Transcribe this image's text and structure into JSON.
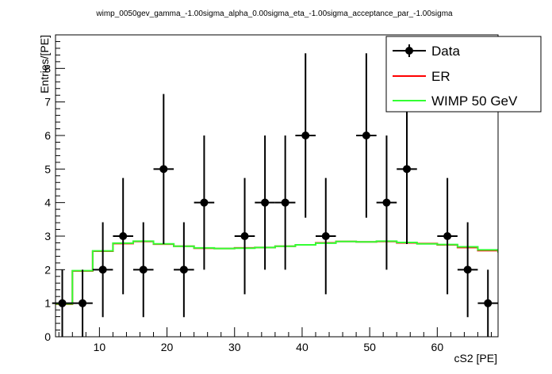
{
  "chart_data": {
    "type": "scatter",
    "title": "wimp_0050gev_gamma_-1.00sigma_alpha_0.00sigma_eta_-1.00sigma_acceptance_par_-1.00sigma",
    "xlabel": "cS2 [PE]",
    "ylabel": "Entries/[PE]",
    "xlim": [
      3.5,
      69
    ],
    "ylim": [
      0,
      9
    ],
    "x_ticks": [
      10,
      20,
      30,
      40,
      50,
      60
    ],
    "y_ticks": [
      0,
      1,
      2,
      3,
      4,
      5,
      6,
      7,
      8
    ],
    "legend_position": "top-right",
    "series": [
      {
        "name": "Data",
        "color": "#000000",
        "style": "markers-with-errorbars",
        "points": [
          {
            "x": 4.5,
            "y": 1
          },
          {
            "x": 7.5,
            "y": 1
          },
          {
            "x": 10.5,
            "y": 2
          },
          {
            "x": 13.5,
            "y": 3
          },
          {
            "x": 16.5,
            "y": 2
          },
          {
            "x": 19.5,
            "y": 5
          },
          {
            "x": 22.5,
            "y": 2
          },
          {
            "x": 25.5,
            "y": 4
          },
          {
            "x": 31.5,
            "y": 3
          },
          {
            "x": 34.5,
            "y": 4
          },
          {
            "x": 37.5,
            "y": 4
          },
          {
            "x": 40.5,
            "y": 6
          },
          {
            "x": 43.5,
            "y": 3
          },
          {
            "x": 49.5,
            "y": 6
          },
          {
            "x": 52.5,
            "y": 4
          },
          {
            "x": 55.5,
            "y": 5
          },
          {
            "x": 61.5,
            "y": 3
          },
          {
            "x": 64.5,
            "y": 2
          },
          {
            "x": 67.5,
            "y": 1
          }
        ]
      },
      {
        "name": "ER",
        "color": "#ff0000",
        "style": "step",
        "bin_edges": [
          3.5,
          6,
          9,
          12,
          15,
          18,
          21,
          24,
          27,
          30,
          33,
          36,
          39,
          42,
          45,
          48,
          51,
          54,
          57,
          60,
          63,
          66,
          69
        ],
        "values": [
          0.97,
          1.96,
          2.55,
          2.78,
          2.84,
          2.76,
          2.7,
          2.64,
          2.63,
          2.65,
          2.66,
          2.7,
          2.74,
          2.8,
          2.84,
          2.83,
          2.84,
          2.8,
          2.78,
          2.74,
          2.66,
          2.57,
          2.51
        ]
      },
      {
        "name": "WIMP 50 GeV",
        "color": "#33ff33",
        "style": "step",
        "bin_edges": [
          3.5,
          6,
          9,
          12,
          15,
          18,
          21,
          24,
          27,
          30,
          33,
          36,
          39,
          42,
          45,
          48,
          51,
          54,
          57,
          60,
          63,
          66,
          69
        ],
        "values": [
          0.98,
          1.97,
          2.56,
          2.79,
          2.85,
          2.77,
          2.7,
          2.65,
          2.63,
          2.64,
          2.66,
          2.7,
          2.74,
          2.79,
          2.84,
          2.83,
          2.85,
          2.81,
          2.77,
          2.75,
          2.68,
          2.59,
          2.51
        ]
      }
    ]
  }
}
